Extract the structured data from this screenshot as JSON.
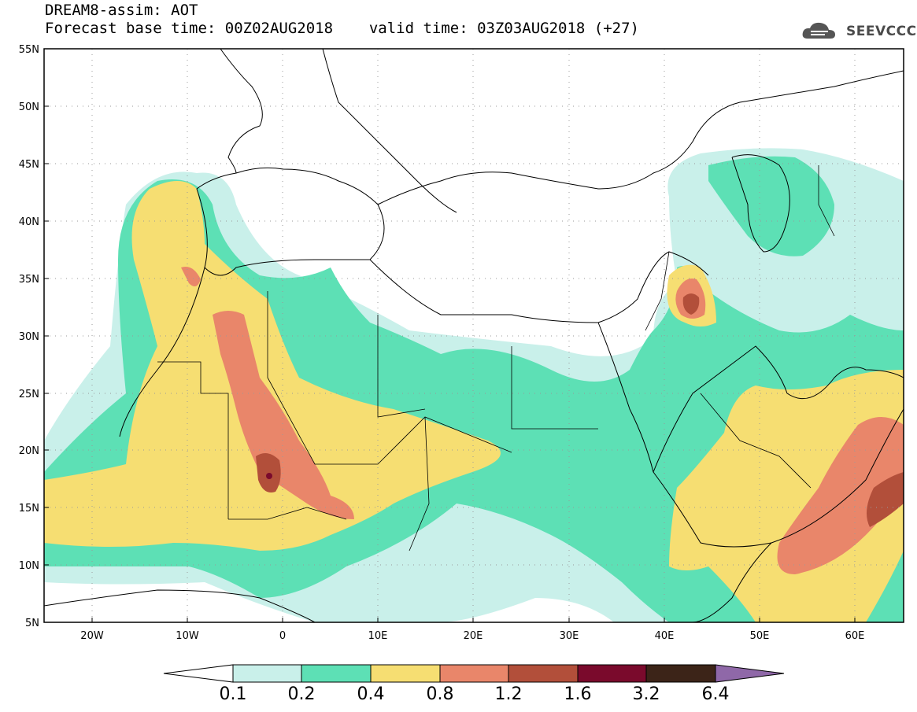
{
  "header": {
    "title": "DREAM8-assim: AOT",
    "base_time_label": "Forecast base time: 00Z02AUG2018",
    "valid_time_label": "valid time: 03Z03AUG2018 (+27)"
  },
  "logo": {
    "text": "SEEVCCC",
    "icon": "cloud-logo-icon"
  },
  "map": {
    "extent": {
      "lon": [
        -25,
        65
      ],
      "lat": [
        5,
        55
      ]
    },
    "lat_ticks": [
      "55N",
      "50N",
      "45N",
      "40N",
      "35N",
      "30N",
      "25N",
      "20N",
      "15N",
      "10N",
      "5N"
    ],
    "lon_ticks": [
      "20W",
      "10W",
      "0",
      "10E",
      "20E",
      "30E",
      "40E",
      "50E",
      "60E"
    ],
    "grid": "dotted"
  },
  "colorbar": {
    "labels": [
      "0.1",
      "0.2",
      "0.4",
      "0.8",
      "1.2",
      "1.6",
      "3.2",
      "6.4"
    ],
    "colors": [
      "#ffffff",
      "#c9f0ea",
      "#5de0b5",
      "#f6de72",
      "#e9866a",
      "#b24f3a",
      "#7a0a2c",
      "#3c2418",
      "#8f68a8"
    ]
  }
}
